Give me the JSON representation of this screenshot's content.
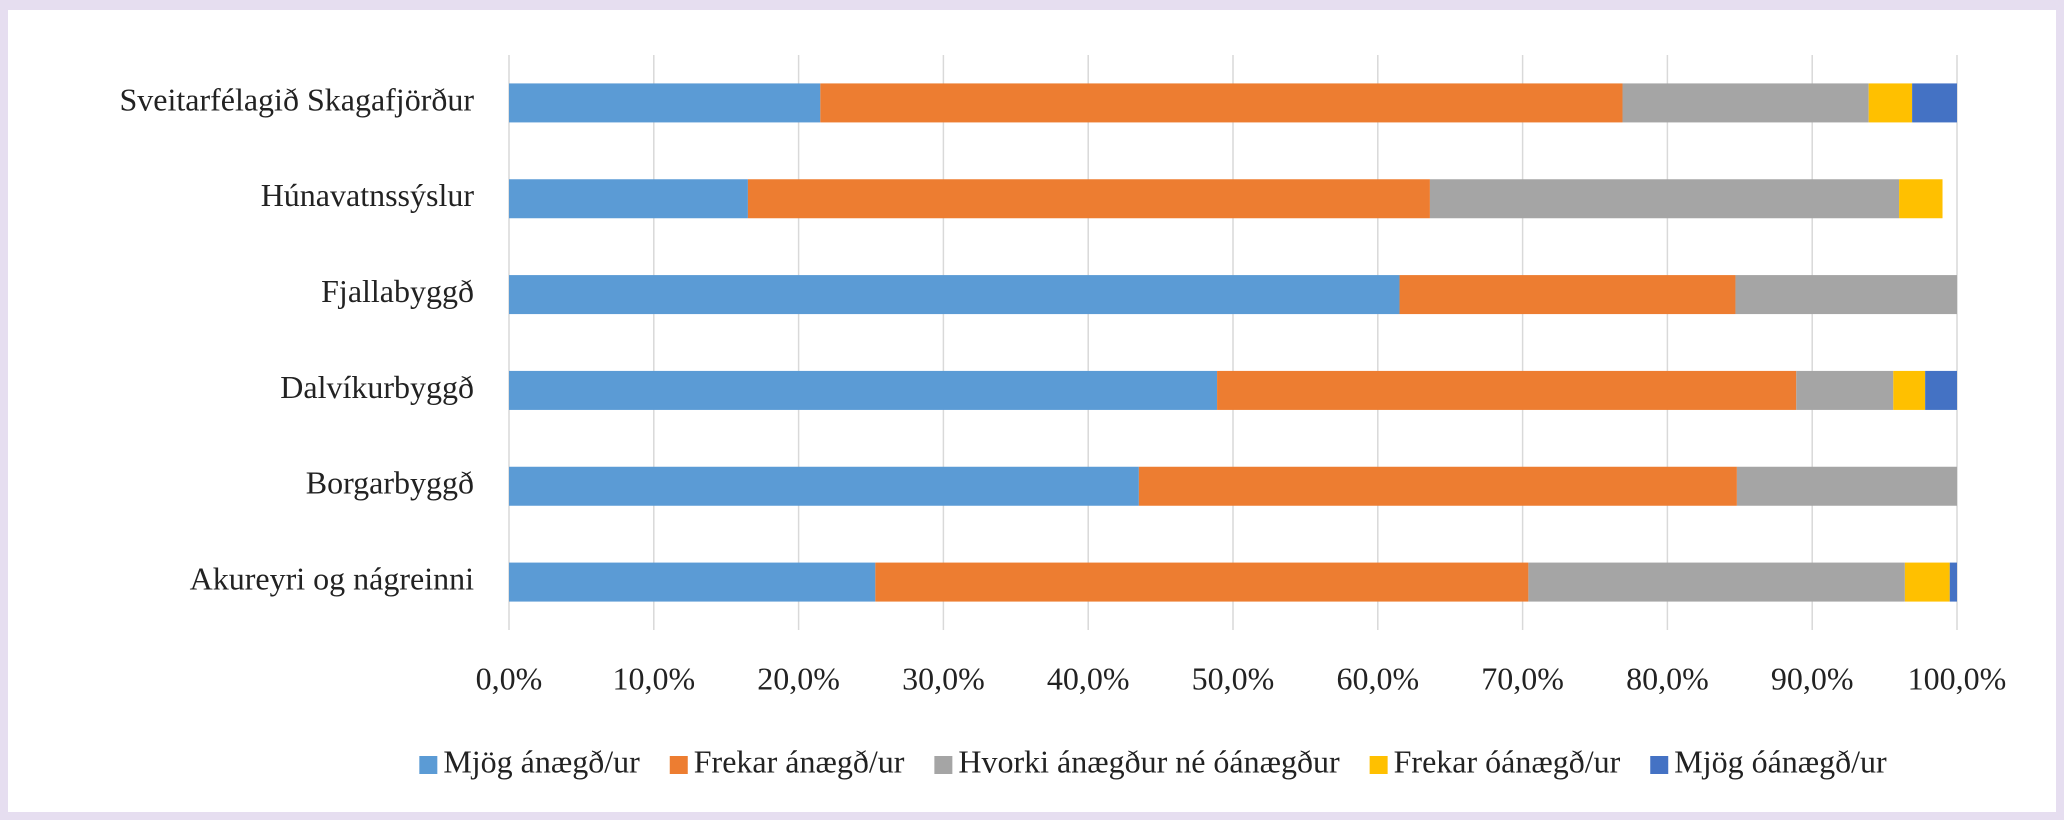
{
  "chart_data": {
    "type": "stacked-barh",
    "categories": [
      "Sveitarfélagið Skagafjörður",
      "Húnavatnssýslur",
      "Fjallabyggð",
      "Dalvíkurbyggð",
      "Borgarbyggð",
      "Akureyri og nágreinni"
    ],
    "series": [
      {
        "name": "Mjög ánægð/ur",
        "color": "#5b9bd5",
        "values": [
          21.5,
          16.5,
          61.5,
          48.9,
          43.5,
          25.3
        ]
      },
      {
        "name": "Frekar ánægð/ur",
        "color": "#ed7d31",
        "values": [
          55.4,
          47.1,
          23.2,
          40.0,
          41.3,
          45.1
        ]
      },
      {
        "name": "Hvorki ánægður né óánægður",
        "color": "#a5a5a5",
        "values": [
          17.0,
          32.4,
          15.3,
          6.7,
          15.2,
          26.0
        ]
      },
      {
        "name": "Frekar óánægð/ur",
        "color": "#ffc000",
        "values": [
          3.0,
          3.0,
          0,
          2.2,
          0,
          3.1
        ]
      },
      {
        "name": "Mjög óánægð/ur",
        "color": "#4472c4",
        "values": [
          3.1,
          0,
          0,
          2.2,
          0,
          0.5
        ]
      }
    ],
    "xlim": [
      0,
      100
    ],
    "xticks": [
      {
        "value": 0,
        "label": "0,0%"
      },
      {
        "value": 10,
        "label": "10,0%"
      },
      {
        "value": 20,
        "label": "20,0%"
      },
      {
        "value": 30,
        "label": "30,0%"
      },
      {
        "value": 40,
        "label": "40,0%"
      },
      {
        "value": 50,
        "label": "50,0%"
      },
      {
        "value": 60,
        "label": "60,0%"
      },
      {
        "value": 70,
        "label": "70,0%"
      },
      {
        "value": 80,
        "label": "80,0%"
      },
      {
        "value": 90,
        "label": "90,0%"
      },
      {
        "value": 100,
        "label": "100,0%"
      }
    ],
    "grid": true,
    "legend": "bottom"
  }
}
